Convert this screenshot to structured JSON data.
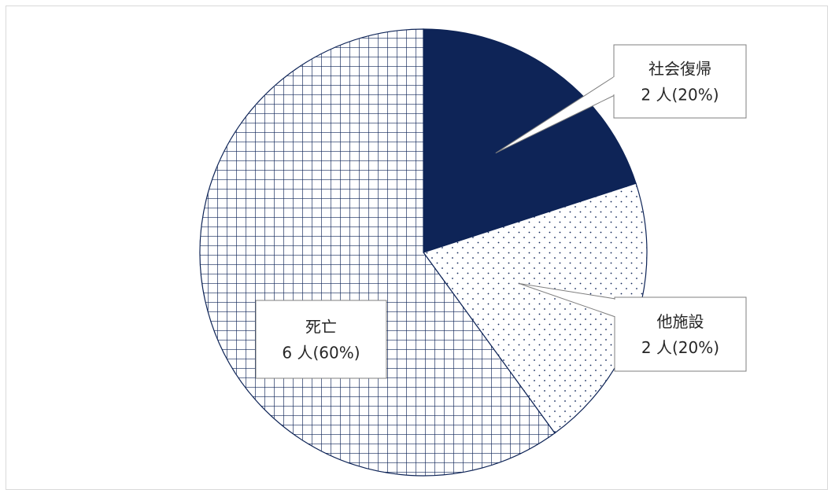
{
  "chart_data": {
    "type": "pie",
    "title": "",
    "start_angle_deg": 0,
    "direction": "clockwise",
    "slices": [
      {
        "name": "社会復帰",
        "value_label": "2 人(20%)",
        "count": 2,
        "percent": 20,
        "fill": "#0e2457",
        "pattern": "solid"
      },
      {
        "name": "他施設",
        "value_label": "2 人(20%)",
        "count": 2,
        "percent": 20,
        "fill": "#ffffff",
        "pattern": "dots"
      },
      {
        "name": "死亡",
        "value_label": "6 人(60%)",
        "count": 6,
        "percent": 60,
        "fill": "#ffffff",
        "pattern": "grid"
      }
    ],
    "pattern_color": "#0e2457",
    "legend": "none",
    "labels": "callouts"
  }
}
